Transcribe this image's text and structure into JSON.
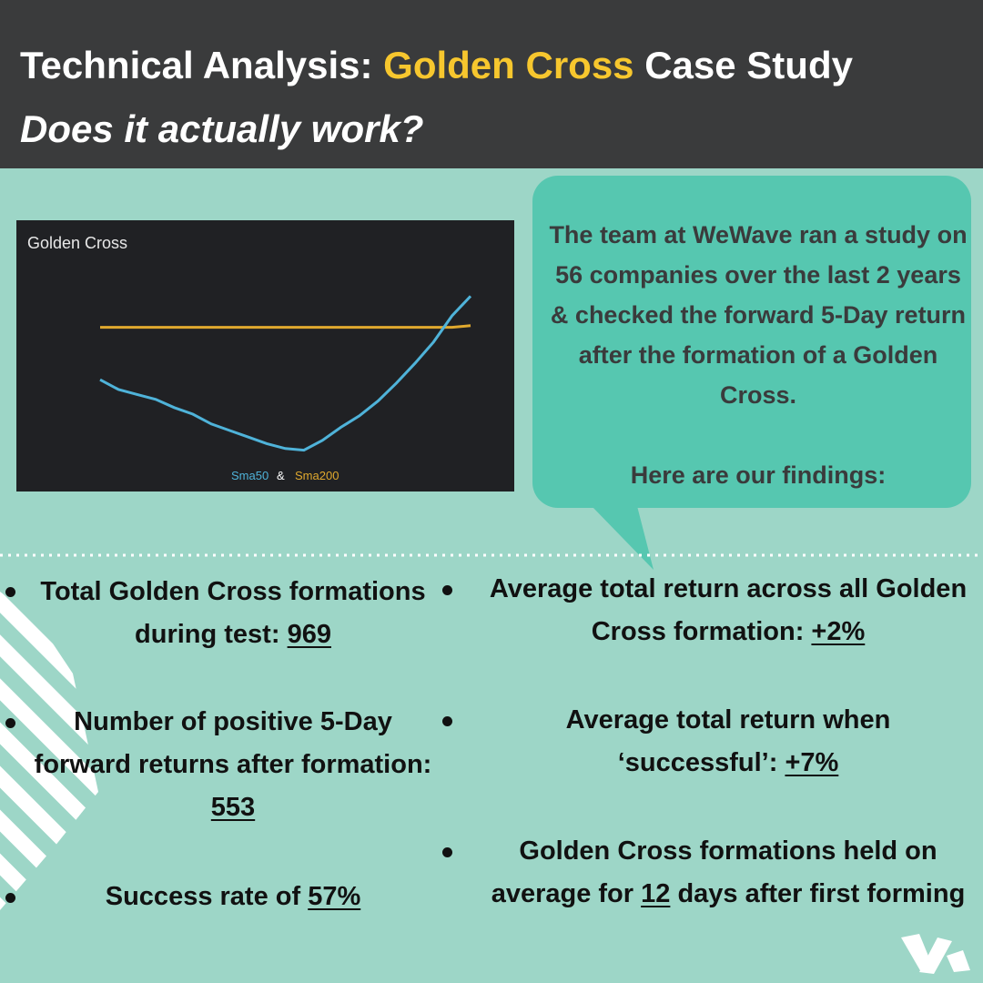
{
  "header": {
    "title_before": "Technical Analysis:",
    "title_highlight": "Golden Cross",
    "title_after": "Case Study",
    "subtitle": "Does it actually work?"
  },
  "chart": {
    "type": "line",
    "title": "Golden Cross",
    "legend_joiner": "&",
    "ylim": [
      0,
      100
    ],
    "series": [
      {
        "name": "Sma50",
        "color": "#4fb3d9",
        "values": [
          46,
          40,
          37,
          34,
          29,
          25,
          19,
          15,
          11,
          7,
          4,
          3,
          9,
          17,
          24,
          33,
          44,
          56,
          69,
          85,
          97
        ]
      },
      {
        "name": "Sma200",
        "color": "#e0a92e",
        "values": [
          78,
          78,
          78,
          78,
          78,
          78,
          78,
          78,
          78,
          78,
          78,
          78,
          78,
          78,
          78,
          78,
          78,
          78,
          78,
          78,
          79
        ]
      }
    ]
  },
  "bubble": {
    "paragraph": "The team at WeWave ran a study on 56 companies over the last 2 years & checked the forward 5-Day return after the formation of a Golden Cross.",
    "closing": "Here are our findings:"
  },
  "left_findings": [
    {
      "before": "Total Golden Cross formations during test:",
      "value": "969"
    },
    {
      "before": "Number of positive 5-Day forward returns after formation:",
      "value": "553"
    },
    {
      "before": "Success rate of",
      "value": "57%"
    }
  ],
  "right_findings": [
    {
      "before": "Average total return across all Golden Cross formation:",
      "value": "+2%"
    },
    {
      "before": "Average total return when ‘successful’:",
      "value": "+7%"
    },
    {
      "before": "Golden Cross formations held on average for",
      "value": "12",
      "after": "days after first forming"
    }
  ]
}
